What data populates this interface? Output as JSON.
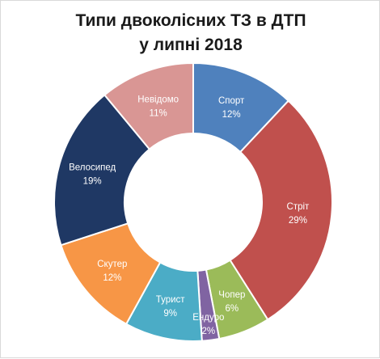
{
  "chart_data": {
    "type": "pie",
    "variant": "donut",
    "title": "Типи двоколісних ТЗ в ДТП у липні 2018",
    "title_lines": [
      "Типи двоколісних ТЗ в ДТП",
      "у липні 2018"
    ],
    "categories": [
      "Спорт",
      "Стріт",
      "Чопер",
      "Ендуро",
      "Турист",
      "Скутер",
      "Велосипед",
      "Невідомо"
    ],
    "values": [
      12,
      29,
      6,
      2,
      9,
      12,
      19,
      11
    ],
    "value_labels": [
      "12%",
      "29%",
      "6%",
      "2%",
      "9%",
      "12%",
      "19%",
      "11%"
    ],
    "colors": [
      "#4f81bd",
      "#c0504d",
      "#9bbb59",
      "#8064a2",
      "#4bacc6",
      "#f79646",
      "#1f3864",
      "#d99694"
    ],
    "legend": "none",
    "data_labels": "inside"
  }
}
